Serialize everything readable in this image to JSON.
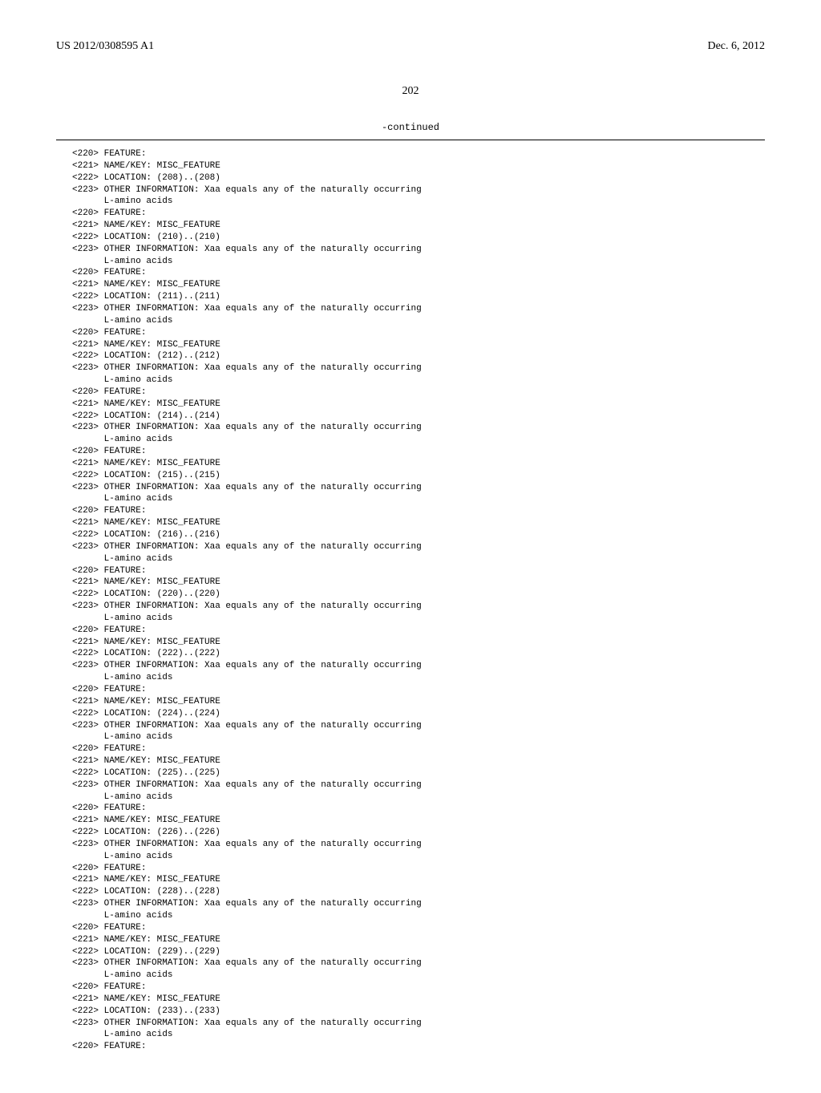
{
  "header": {
    "left": "US 2012/0308595 A1",
    "right": "Dec. 6, 2012"
  },
  "page_number": "202",
  "continued_label": "-continued",
  "features": [
    {
      "location": "(208)..(208)"
    },
    {
      "location": "(210)..(210)"
    },
    {
      "location": "(211)..(211)"
    },
    {
      "location": "(212)..(212)"
    },
    {
      "location": "(214)..(214)"
    },
    {
      "location": "(215)..(215)"
    },
    {
      "location": "(216)..(216)"
    },
    {
      "location": "(220)..(220)"
    },
    {
      "location": "(222)..(222)"
    },
    {
      "location": "(224)..(224)"
    },
    {
      "location": "(225)..(225)"
    },
    {
      "location": "(226)..(226)"
    },
    {
      "location": "(228)..(228)"
    },
    {
      "location": "(229)..(229)"
    },
    {
      "location": "(233)..(233)"
    }
  ],
  "tags": {
    "feature_line": "<220> FEATURE:",
    "name_key_line": "<221> NAME/KEY: MISC_FEATURE",
    "location_prefix": "<222> LOCATION: ",
    "other_info_line": "<223> OTHER INFORMATION: Xaa equals any of the naturally occurring",
    "other_info_indent": "      L-amino acids"
  },
  "trailing_feature_line": "<220> FEATURE:"
}
